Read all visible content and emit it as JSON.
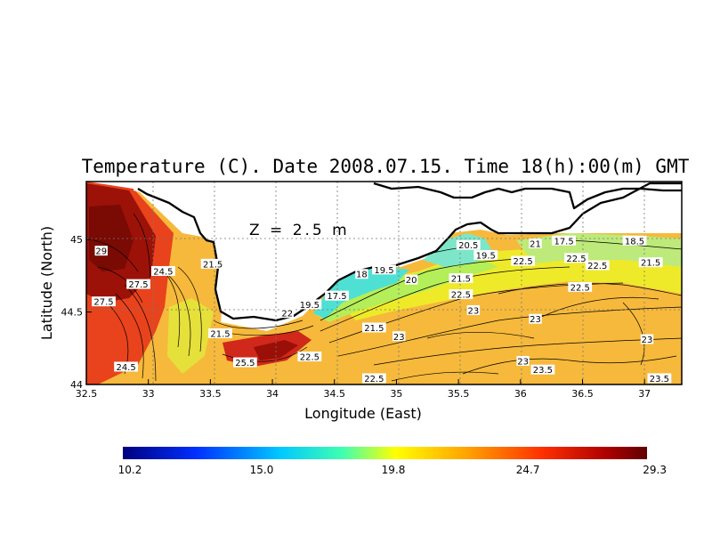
{
  "title": "Temperature (C). Date 2008.07.15. Time 18(h):00(m) GMT",
  "depth_label": "Z = 2.5 m",
  "axes": {
    "xlabel": "Longitude (East)",
    "ylabel": "Latitude (North)",
    "xlim": [
      32.5,
      37.3
    ],
    "ylim": [
      44.0,
      45.4
    ],
    "xticks": [
      32.5,
      33,
      33.5,
      34,
      34.5,
      35,
      35.5,
      36,
      36.5,
      37
    ],
    "yticks": [
      44,
      44.5,
      45
    ]
  },
  "colorbar": {
    "min": 10.2,
    "max": 29.3,
    "tick_labels": [
      "10.2",
      "15.0",
      "19.8",
      "24.7",
      "29.3"
    ],
    "colors": [
      "#000080",
      "#0030ff",
      "#00c8ff",
      "#40ffb0",
      "#ffff00",
      "#ffa000",
      "#ff3000",
      "#b00000",
      "#600000"
    ]
  },
  "chart_data": {
    "type": "heatmap",
    "title": "Temperature (C). Date 2008.07.15. Time 18(h):00(m) GMT",
    "xlabel": "Longitude (East)",
    "ylabel": "Latitude (North)",
    "xlim": [
      32.5,
      37.3
    ],
    "ylim": [
      44.0,
      45.4
    ],
    "value_range": [
      10.2,
      29.3
    ],
    "grid": true,
    "contour_labels": [
      {
        "lon": 32.62,
        "lat": 44.92,
        "value": "29"
      },
      {
        "lon": 32.64,
        "lat": 44.57,
        "value": "27.5"
      },
      {
        "lon": 32.82,
        "lat": 44.12,
        "value": "24.5"
      },
      {
        "lon": 32.92,
        "lat": 44.69,
        "value": "27.5"
      },
      {
        "lon": 33.12,
        "lat": 44.78,
        "value": "24.5"
      },
      {
        "lon": 33.52,
        "lat": 44.83,
        "value": "21.5"
      },
      {
        "lon": 33.58,
        "lat": 44.35,
        "value": "21.5"
      },
      {
        "lon": 33.78,
        "lat": 44.15,
        "value": "25.5"
      },
      {
        "lon": 34.12,
        "lat": 44.49,
        "value": "22"
      },
      {
        "lon": 34.3,
        "lat": 44.55,
        "value": "19.5"
      },
      {
        "lon": 34.52,
        "lat": 44.61,
        "value": "17.5"
      },
      {
        "lon": 34.72,
        "lat": 44.76,
        "value": "18"
      },
      {
        "lon": 34.9,
        "lat": 44.79,
        "value": "19.5"
      },
      {
        "lon": 35.12,
        "lat": 44.72,
        "value": "20"
      },
      {
        "lon": 35.52,
        "lat": 44.73,
        "value": "21.5"
      },
      {
        "lon": 35.52,
        "lat": 44.62,
        "value": "22.5"
      },
      {
        "lon": 35.62,
        "lat": 44.51,
        "value": "23"
      },
      {
        "lon": 35.58,
        "lat": 44.96,
        "value": "20.5"
      },
      {
        "lon": 35.72,
        "lat": 44.89,
        "value": "19.5"
      },
      {
        "lon": 36.02,
        "lat": 44.85,
        "value": "22.5"
      },
      {
        "lon": 36.12,
        "lat": 44.97,
        "value": "21"
      },
      {
        "lon": 36.35,
        "lat": 44.99,
        "value": "17.5"
      },
      {
        "lon": 36.45,
        "lat": 44.87,
        "value": "22.5"
      },
      {
        "lon": 36.62,
        "lat": 44.82,
        "value": "22.5"
      },
      {
        "lon": 36.92,
        "lat": 44.99,
        "value": "18.5"
      },
      {
        "lon": 37.05,
        "lat": 44.84,
        "value": "21.5"
      },
      {
        "lon": 36.48,
        "lat": 44.67,
        "value": "22.5"
      },
      {
        "lon": 36.12,
        "lat": 44.45,
        "value": "23"
      },
      {
        "lon": 37.02,
        "lat": 44.31,
        "value": "23"
      },
      {
        "lon": 35.02,
        "lat": 44.33,
        "value": "23"
      },
      {
        "lon": 34.82,
        "lat": 44.39,
        "value": "21.5"
      },
      {
        "lon": 34.3,
        "lat": 44.19,
        "value": "22.5"
      },
      {
        "lon": 34.82,
        "lat": 44.04,
        "value": "22.5"
      },
      {
        "lon": 36.02,
        "lat": 44.16,
        "value": "23"
      },
      {
        "lon": 36.18,
        "lat": 44.1,
        "value": "23.5"
      },
      {
        "lon": 37.12,
        "lat": 44.04,
        "value": "23.5"
      }
    ]
  }
}
